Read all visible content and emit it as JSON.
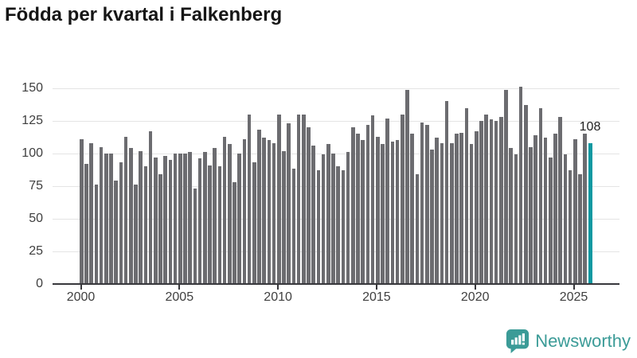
{
  "title": "Födda per kvartal i Falkenberg",
  "annotation": {
    "last_value_label": "108"
  },
  "branding": {
    "wordmark": "Newsworthy",
    "icon": "newsworthy-speech-bubble-chart-icon"
  },
  "colors": {
    "bar": "#6c6c70",
    "highlight": "#0d98a1",
    "grid": "#e4e4e4",
    "axis": "#38383c",
    "title": "#161616",
    "tick_label": "#3f3f3f",
    "brand": "#3b9b97"
  },
  "chart_data": {
    "type": "bar",
    "title": "Födda per kvartal i Falkenberg",
    "xlabel": "",
    "ylabel": "",
    "ylim": [
      0,
      150
    ],
    "yticks": [
      0,
      25,
      50,
      75,
      100,
      125,
      150
    ],
    "xticks": [
      "2000",
      "2005",
      "2010",
      "2015",
      "2020",
      "2025"
    ],
    "xtick_years": [
      2000,
      2005,
      2010,
      2015,
      2020,
      2025
    ],
    "grid": true,
    "legend": false,
    "highlight_index": 103,
    "highlight_value": 108,
    "x": [
      "2000-Q1",
      "2000-Q2",
      "2000-Q3",
      "2000-Q4",
      "2001-Q1",
      "2001-Q2",
      "2001-Q3",
      "2001-Q4",
      "2002-Q1",
      "2002-Q2",
      "2002-Q3",
      "2002-Q4",
      "2003-Q1",
      "2003-Q2",
      "2003-Q3",
      "2003-Q4",
      "2004-Q1",
      "2004-Q2",
      "2004-Q3",
      "2004-Q4",
      "2005-Q1",
      "2005-Q2",
      "2005-Q3",
      "2005-Q4",
      "2006-Q1",
      "2006-Q2",
      "2006-Q3",
      "2006-Q4",
      "2007-Q1",
      "2007-Q2",
      "2007-Q3",
      "2007-Q4",
      "2008-Q1",
      "2008-Q2",
      "2008-Q3",
      "2008-Q4",
      "2009-Q1",
      "2009-Q2",
      "2009-Q3",
      "2009-Q4",
      "2010-Q1",
      "2010-Q2",
      "2010-Q3",
      "2010-Q4",
      "2011-Q1",
      "2011-Q2",
      "2011-Q3",
      "2011-Q4",
      "2012-Q1",
      "2012-Q2",
      "2012-Q3",
      "2012-Q4",
      "2013-Q1",
      "2013-Q2",
      "2013-Q3",
      "2013-Q4",
      "2014-Q1",
      "2014-Q2",
      "2014-Q3",
      "2014-Q4",
      "2015-Q1",
      "2015-Q2",
      "2015-Q3",
      "2015-Q4",
      "2016-Q1",
      "2016-Q2",
      "2016-Q3",
      "2016-Q4",
      "2017-Q1",
      "2017-Q2",
      "2017-Q3",
      "2017-Q4",
      "2018-Q1",
      "2018-Q2",
      "2018-Q3",
      "2018-Q4",
      "2019-Q1",
      "2019-Q2",
      "2019-Q3",
      "2019-Q4",
      "2020-Q1",
      "2020-Q2",
      "2020-Q3",
      "2020-Q4",
      "2021-Q1",
      "2021-Q2",
      "2021-Q3",
      "2021-Q4",
      "2022-Q1",
      "2022-Q2",
      "2022-Q3",
      "2022-Q4",
      "2023-Q1",
      "2023-Q2",
      "2023-Q3",
      "2023-Q4",
      "2024-Q1",
      "2024-Q2",
      "2024-Q3",
      "2024-Q4",
      "2025-Q1",
      "2025-Q2",
      "2025-Q3",
      "2025-Q4"
    ],
    "values": [
      111,
      92,
      108,
      76,
      105,
      100,
      100,
      79,
      93,
      113,
      104,
      76,
      102,
      90,
      117,
      97,
      84,
      98,
      95,
      100,
      100,
      100,
      101,
      73,
      96,
      101,
      91,
      104,
      90,
      113,
      107,
      78,
      100,
      111,
      130,
      93,
      118,
      112,
      110,
      108,
      130,
      102,
      123,
      88,
      130,
      130,
      120,
      106,
      87,
      99,
      107,
      100,
      90,
      87,
      101,
      120,
      115,
      110,
      122,
      129,
      113,
      107,
      127,
      109,
      110,
      130,
      149,
      115,
      84,
      124,
      122,
      103,
      112,
      108,
      140,
      108,
      115,
      116,
      135,
      107,
      117,
      125,
      130,
      126,
      125,
      128,
      149,
      104,
      99,
      151,
      137,
      105,
      114,
      135,
      112,
      97,
      115,
      128,
      99,
      87,
      111,
      84,
      115,
      108
    ]
  }
}
